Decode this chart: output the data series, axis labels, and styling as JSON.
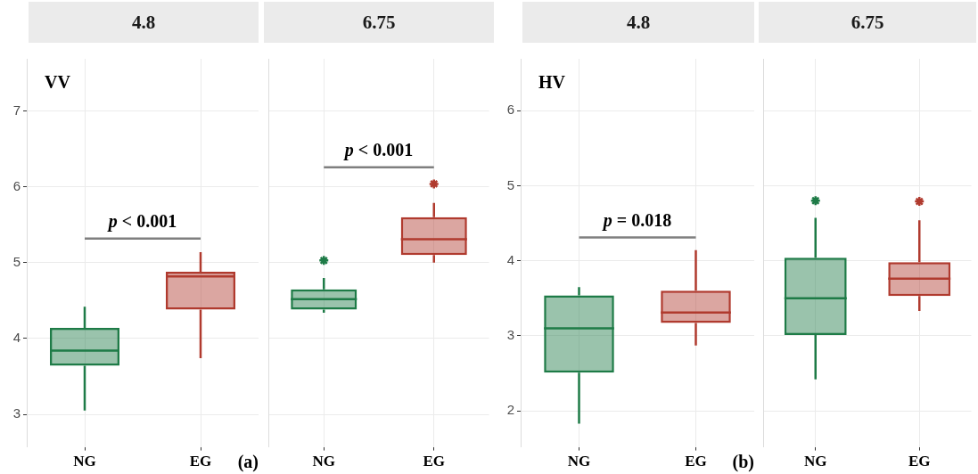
{
  "chart_data": [
    {
      "type": "box",
      "title": "4.8",
      "categories": [
        "NG",
        "EG"
      ],
      "colors": [
        "#1e7b47",
        "#b03a2e"
      ],
      "ylim": [
        2.57,
        7.69
      ],
      "yticks": [
        3,
        4,
        5,
        6,
        7
      ],
      "grid": true,
      "marker": "star",
      "boxes": [
        {
          "low": 3.05,
          "q1": 3.64,
          "median": 3.84,
          "q3": 4.14,
          "high": 4.42
        },
        {
          "low": 3.74,
          "q1": 4.38,
          "median": 4.82,
          "q3": 4.88,
          "high": 5.14
        }
      ],
      "ref_lines": [
        {
          "axis": "y",
          "value": 5.32,
          "color": "#7f7f7f"
        }
      ],
      "annotations": [
        "p < 0.001",
        "VV",
        "(a)"
      ]
    },
    {
      "type": "box",
      "title": "6.75",
      "categories": [
        "NG",
        "EG"
      ],
      "colors": [
        "#1e7b47",
        "#b03a2e"
      ],
      "ylim": [
        2.57,
        7.69
      ],
      "yticks": [
        3,
        4,
        5,
        6,
        7
      ],
      "grid": true,
      "marker": "star",
      "tick_labels": "x",
      "boxes": [
        {
          "low": 4.34,
          "q1": 4.38,
          "median": 4.52,
          "q3": 4.65,
          "high": 4.8,
          "outliers": [
            5.03
          ]
        },
        {
          "low": 5.0,
          "q1": 5.1,
          "median": 5.31,
          "q3": 5.6,
          "high": 5.79,
          "outliers": [
            6.04
          ]
        }
      ],
      "ref_lines": [
        {
          "axis": "y",
          "value": 6.26,
          "color": "#7f7f7f"
        }
      ],
      "annotations": [
        "p < 0.001"
      ]
    },
    {
      "type": "box",
      "title": "4.8",
      "categories": [
        "NG",
        "EG"
      ],
      "colors": [
        "#1e7b47",
        "#b03a2e"
      ],
      "ylim": [
        1.52,
        6.69
      ],
      "yticks": [
        2,
        3,
        4,
        5,
        6
      ],
      "grid": true,
      "marker": "star",
      "boxes": [
        {
          "low": 1.83,
          "q1": 2.51,
          "median": 3.1,
          "q3": 3.54,
          "high": 3.65
        },
        {
          "low": 2.87,
          "q1": 3.17,
          "median": 3.31,
          "q3": 3.6,
          "high": 4.14
        }
      ],
      "ref_lines": [
        {
          "axis": "y",
          "value": 4.31,
          "color": "#7f7f7f"
        }
      ],
      "annotations": [
        "p = 0.018",
        "HV",
        "(b)"
      ]
    },
    {
      "type": "box",
      "title": "6.75",
      "categories": [
        "NG",
        "EG"
      ],
      "colors": [
        "#1e7b47",
        "#b03a2e"
      ],
      "ylim": [
        1.52,
        6.69
      ],
      "yticks": [
        2,
        3,
        4,
        5,
        6
      ],
      "grid": true,
      "marker": "star",
      "tick_labels": "x",
      "boxes": [
        {
          "low": 2.42,
          "q1": 3.01,
          "median": 3.5,
          "q3": 4.04,
          "high": 4.57,
          "outliers": [
            4.8
          ]
        },
        {
          "low": 3.33,
          "q1": 3.53,
          "median": 3.76,
          "q3": 3.98,
          "high": 4.54,
          "outliers": [
            4.79
          ]
        }
      ]
    }
  ]
}
